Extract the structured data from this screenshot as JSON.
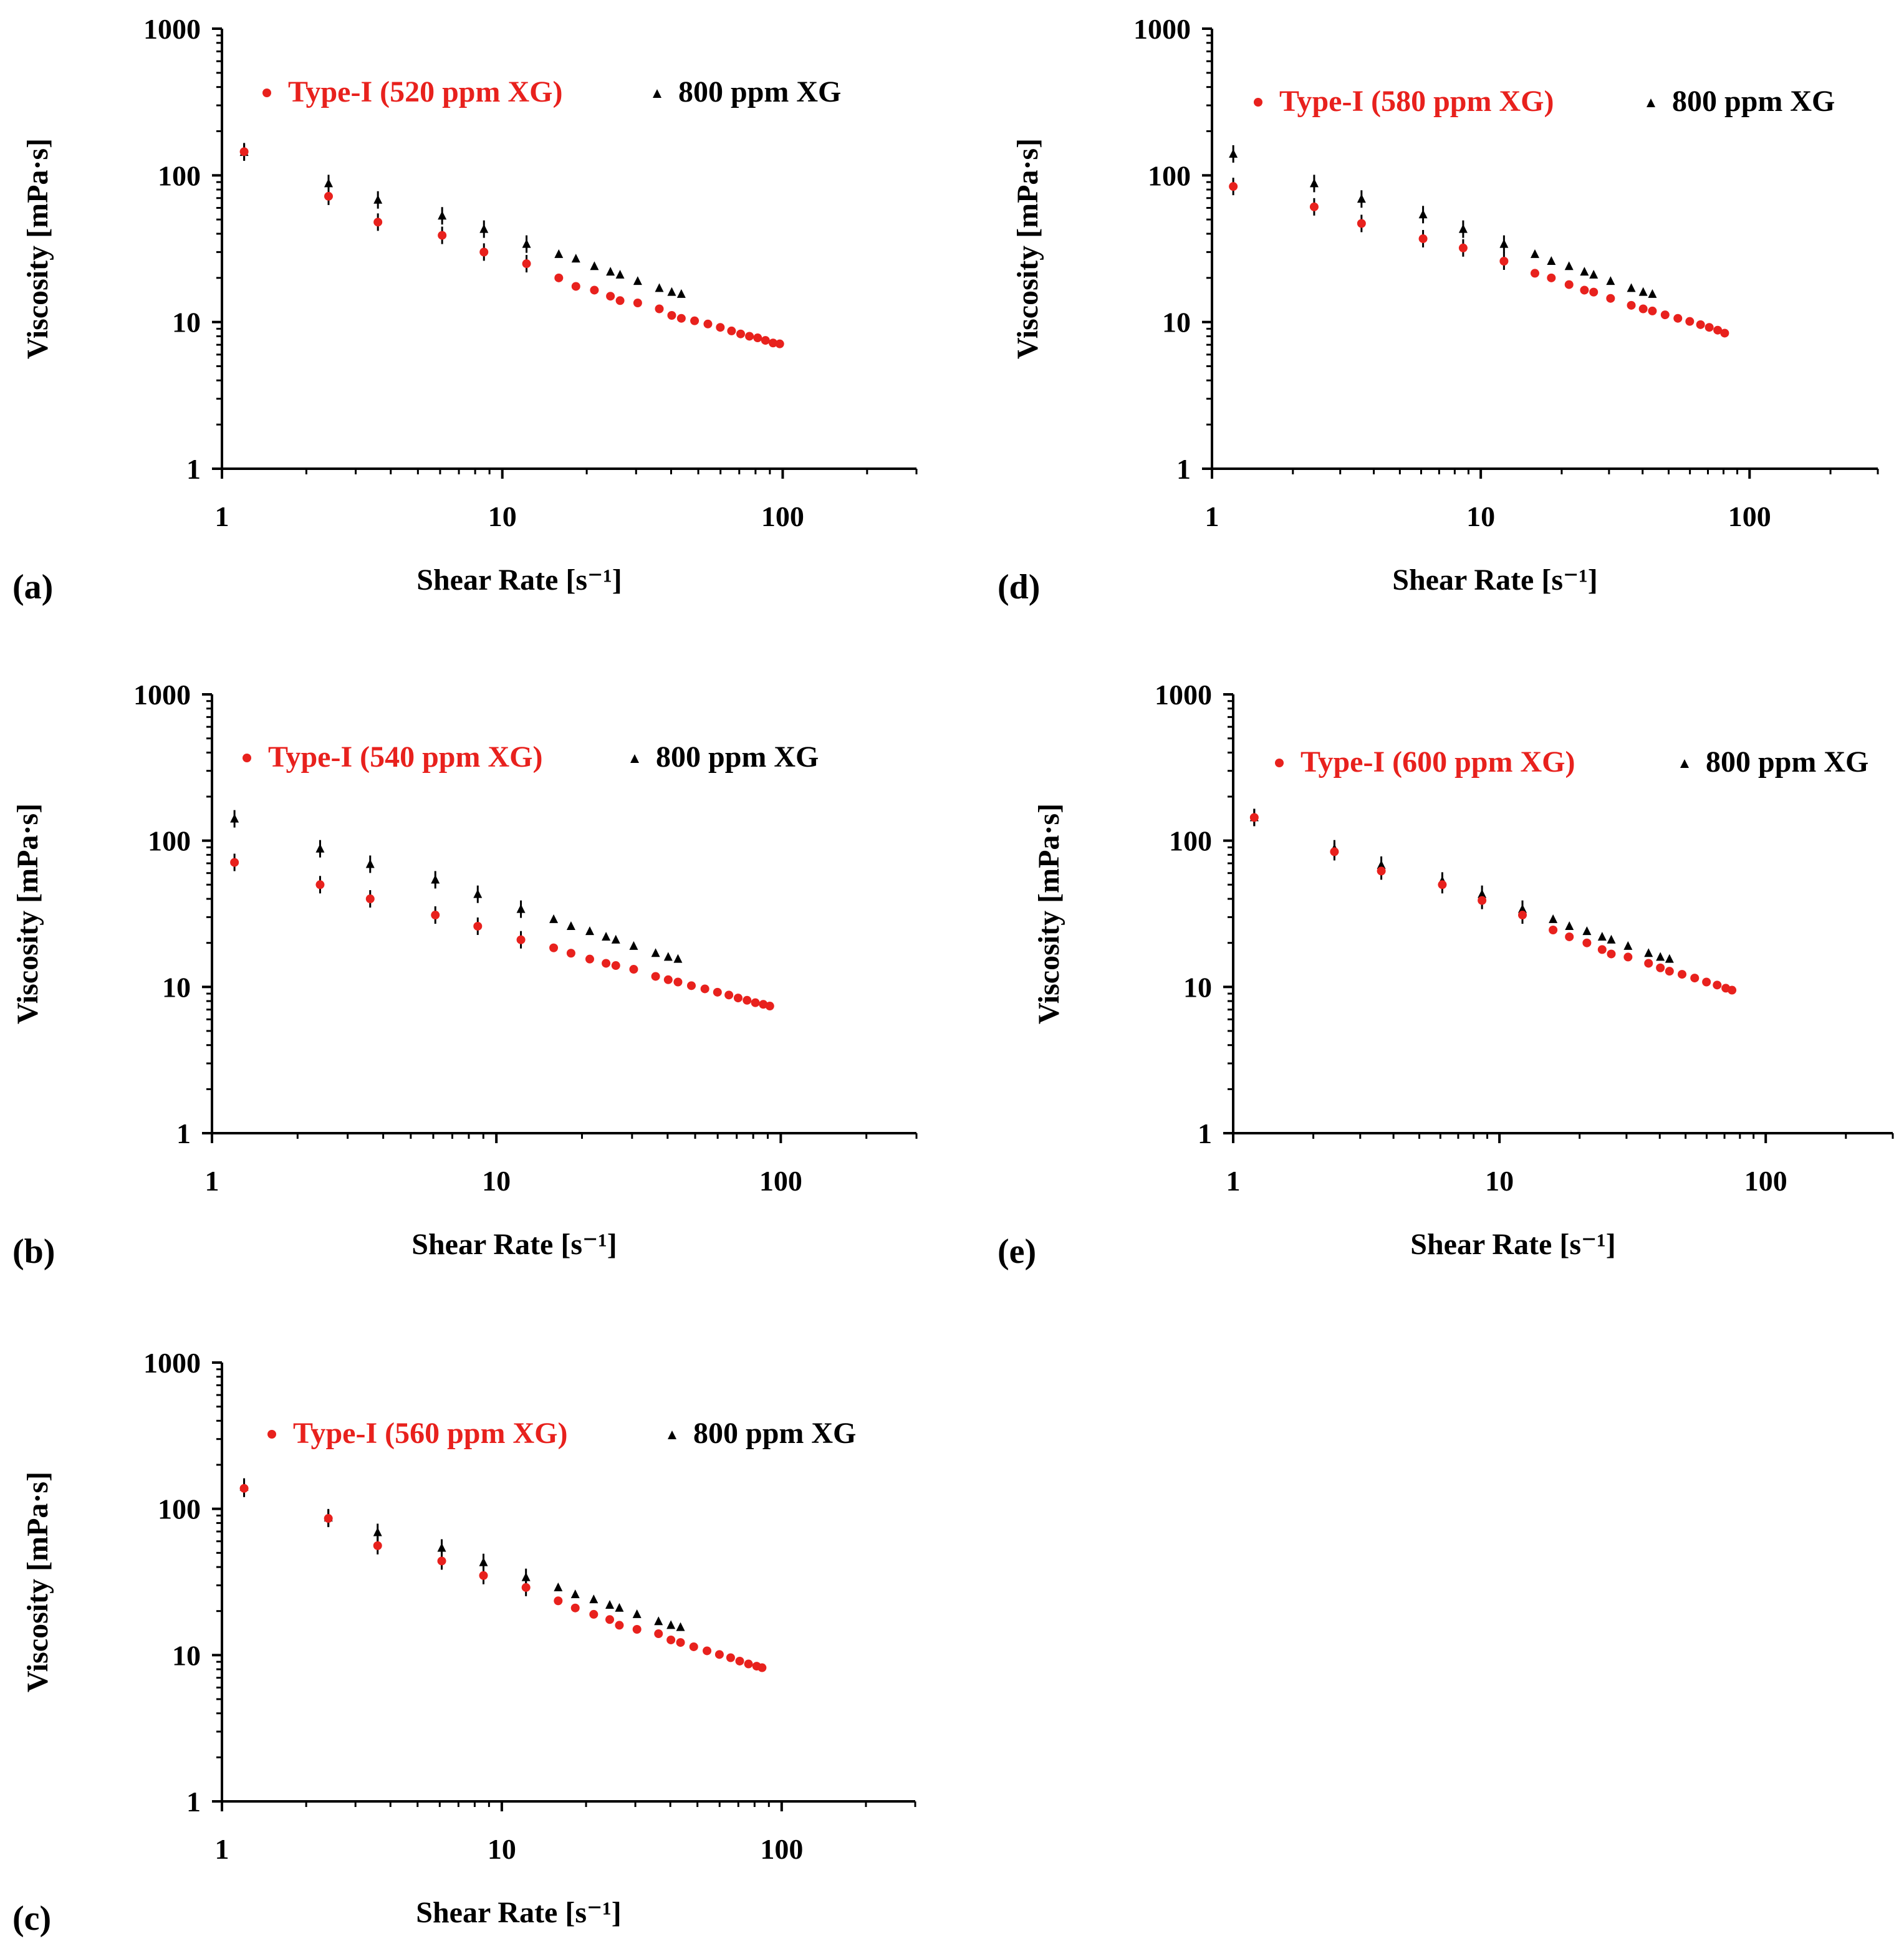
{
  "figure": {
    "colors": {
      "type1": "#e8211d",
      "ref": "#000000",
      "axis": "#000000"
    }
  },
  "chart_data": [
    {
      "panel": "(a)",
      "type": "scatter",
      "xscale": "log",
      "yscale": "log",
      "xlim": [
        1,
        300
      ],
      "ylim": [
        1,
        1000
      ],
      "xticks": [
        "1",
        "10",
        "100"
      ],
      "yticks": [
        "1",
        "10",
        "100",
        "1000"
      ],
      "xlabel": "Shear Rate [s⁻¹]",
      "ylabel": "Viscosity [mPa·s]",
      "legend_placement": "top",
      "series": [
        {
          "name": "Type-I (520 ppm XG)",
          "marker": "circle",
          "color": "#e8211d",
          "x": [
            1.2,
            2.4,
            3.6,
            6.1,
            8.6,
            12.2,
            15.9,
            18.3,
            21.3,
            24.3,
            26.3,
            30.4,
            36.3,
            40.2,
            43.5,
            48.5,
            54.1,
            59.9,
            65.7,
            70.8,
            76.1,
            81.4,
            86.8,
            92.4,
            97.6
          ],
          "y": [
            145,
            72,
            48,
            39,
            30,
            25,
            20,
            17.5,
            16.5,
            15,
            14,
            13.5,
            12.3,
            11.1,
            10.6,
            10.2,
            9.7,
            9.2,
            8.7,
            8.3,
            8.0,
            7.8,
            7.5,
            7.2,
            7.1
          ]
        },
        {
          "name": "800 ppm XG",
          "marker": "triangle",
          "color": "#000000",
          "x": [
            1.2,
            2.4,
            3.6,
            6.1,
            8.6,
            12.2,
            15.9,
            18.3,
            21.3,
            24.3,
            26.3,
            30.4,
            36.3,
            40.2,
            43.5
          ],
          "y": [
            144,
            88,
            68,
            53,
            43,
            34,
            29,
            27,
            24,
            22,
            21,
            19,
            17,
            16,
            15.5
          ]
        }
      ]
    },
    {
      "panel": "(b)",
      "type": "scatter",
      "xscale": "log",
      "yscale": "log",
      "xlim": [
        1,
        300
      ],
      "ylim": [
        1,
        1000
      ],
      "xticks": [
        "1",
        "10",
        "100"
      ],
      "yticks": [
        "1",
        "10",
        "100",
        "1000"
      ],
      "xlabel": "Shear Rate [s⁻¹]",
      "ylabel": "Viscosity [mPa·s]",
      "legend_placement": "top",
      "series": [
        {
          "name": "Type-I (540 ppm XG)",
          "marker": "circle",
          "color": "#e8211d",
          "x": [
            1.2,
            2.4,
            3.6,
            6.1,
            8.6,
            12.2,
            15.9,
            18.3,
            21.3,
            24.3,
            26.3,
            30.4,
            36.3,
            40.2,
            43.5,
            48.5,
            54.1,
            59.9,
            65.7,
            70.8,
            76.1,
            81.4,
            86.8,
            91.5
          ],
          "y": [
            71,
            50,
            40,
            31,
            26,
            21,
            18.5,
            17,
            15.5,
            14.5,
            14,
            13.2,
            11.8,
            11.2,
            10.8,
            10.2,
            9.7,
            9.2,
            8.8,
            8.4,
            8.1,
            7.8,
            7.6,
            7.4
          ]
        },
        {
          "name": "800 ppm XG",
          "marker": "triangle",
          "color": "#000000",
          "x": [
            1.2,
            2.4,
            3.6,
            6.1,
            8.6,
            12.2,
            15.9,
            18.3,
            21.3,
            24.3,
            26.3,
            30.4,
            36.3,
            40.2,
            43.5
          ],
          "y": [
            141,
            88,
            69,
            54,
            43,
            34,
            29,
            26,
            24,
            22,
            21,
            19,
            17,
            16,
            15.5
          ]
        }
      ]
    },
    {
      "panel": "(c)",
      "type": "scatter",
      "xscale": "log",
      "yscale": "log",
      "xlim": [
        1,
        300
      ],
      "ylim": [
        1,
        1000
      ],
      "xticks": [
        "1",
        "10",
        "100"
      ],
      "yticks": [
        "1",
        "10",
        "100",
        "1000"
      ],
      "xlabel": "Shear Rate [s⁻¹]",
      "ylabel": "Viscosity [mPa·s]",
      "legend_placement": "top",
      "series": [
        {
          "name": "Type-I (560 ppm XG)",
          "marker": "circle",
          "color": "#e8211d",
          "x": [
            1.2,
            2.4,
            3.6,
            6.1,
            8.6,
            12.2,
            15.9,
            18.3,
            21.3,
            24.3,
            26.3,
            30.4,
            36.3,
            40.2,
            43.5,
            48.5,
            54.1,
            59.9,
            65.7,
            70.8,
            76.1,
            81.4,
            85.1
          ],
          "y": [
            138,
            86,
            56,
            44,
            35,
            29,
            23.5,
            21,
            19,
            17.5,
            16,
            15,
            14,
            12.7,
            12.2,
            11.4,
            10.7,
            10.1,
            9.6,
            9.1,
            8.7,
            8.4,
            8.2
          ]
        },
        {
          "name": "800 ppm XG",
          "marker": "triangle",
          "color": "#000000",
          "x": [
            1.2,
            2.4,
            3.6,
            6.1,
            8.6,
            12.2,
            15.9,
            18.3,
            21.3,
            24.3,
            26.3,
            30.4,
            36.3,
            40.2,
            43.5
          ],
          "y": [
            141,
            87,
            69,
            54,
            43,
            34,
            29,
            26,
            24,
            22,
            21,
            19,
            17,
            16,
            15.5
          ]
        }
      ]
    },
    {
      "panel": "(d)",
      "type": "scatter",
      "xscale": "log",
      "yscale": "log",
      "xlim": [
        1,
        300
      ],
      "ylim": [
        1,
        1000
      ],
      "xticks": [
        "1",
        "10",
        "100"
      ],
      "yticks": [
        "1",
        "10",
        "100",
        "1000"
      ],
      "xlabel": "Shear Rate [s⁻¹]",
      "ylabel": "Viscosity [mPa·s]",
      "legend_placement": "top",
      "series": [
        {
          "name": "Type-I (580 ppm XG)",
          "marker": "circle",
          "color": "#e8211d",
          "x": [
            1.2,
            2.4,
            3.6,
            6.1,
            8.6,
            12.2,
            15.9,
            18.3,
            21.3,
            24.3,
            26.3,
            30.4,
            36.3,
            40.2,
            43.5,
            48.5,
            54.1,
            59.9,
            65.7,
            70.8,
            76.1,
            80.8
          ],
          "y": [
            84,
            61,
            47,
            37,
            32,
            26,
            21.5,
            20,
            18,
            16.5,
            16,
            14.5,
            13,
            12.3,
            11.9,
            11.2,
            10.6,
            10.1,
            9.6,
            9.2,
            8.8,
            8.4
          ]
        },
        {
          "name": "800 ppm XG",
          "marker": "triangle",
          "color": "#000000",
          "x": [
            1.2,
            2.4,
            3.6,
            6.1,
            8.6,
            12.2,
            15.9,
            18.3,
            21.3,
            24.3,
            26.3,
            30.4,
            36.3,
            40.2,
            43.5
          ],
          "y": [
            140,
            88,
            69,
            54,
            43,
            34,
            29,
            26,
            24,
            22,
            21,
            19,
            17,
            16,
            15.5
          ]
        }
      ]
    },
    {
      "panel": "(e)",
      "type": "scatter",
      "xscale": "log",
      "yscale": "log",
      "xlim": [
        1,
        300
      ],
      "ylim": [
        1,
        1000
      ],
      "xticks": [
        "1",
        "10",
        "100"
      ],
      "yticks": [
        "1",
        "10",
        "100",
        "1000"
      ],
      "xlabel": "Shear Rate [s⁻¹]",
      "ylabel": "Viscosity [mPa·s]",
      "legend_placement": "top",
      "series": [
        {
          "name": "Type-I (600 ppm XG)",
          "marker": "circle",
          "color": "#e8211d",
          "x": [
            1.2,
            2.4,
            3.6,
            6.1,
            8.6,
            12.2,
            15.9,
            18.3,
            21.3,
            24.3,
            26.3,
            30.4,
            36.3,
            40.2,
            43.5,
            48.5,
            54.1,
            59.9,
            65.7,
            70.8,
            74.7
          ],
          "y": [
            144,
            84,
            62,
            50,
            39,
            31,
            24.5,
            22,
            20,
            18,
            16.8,
            16,
            14.5,
            13.5,
            12.8,
            12.2,
            11.5,
            10.8,
            10.3,
            9.8,
            9.5
          ]
        },
        {
          "name": "800 ppm XG",
          "marker": "triangle",
          "color": "#000000",
          "x": [
            1.2,
            2.4,
            3.6,
            6.1,
            8.6,
            12.2,
            15.9,
            18.3,
            21.3,
            24.3,
            26.3,
            30.4,
            36.3,
            40.2,
            43.5
          ],
          "y": [
            144,
            88,
            68,
            53,
            43,
            34,
            29,
            26,
            24,
            22,
            21,
            19,
            17,
            16,
            15.5
          ]
        }
      ]
    }
  ]
}
